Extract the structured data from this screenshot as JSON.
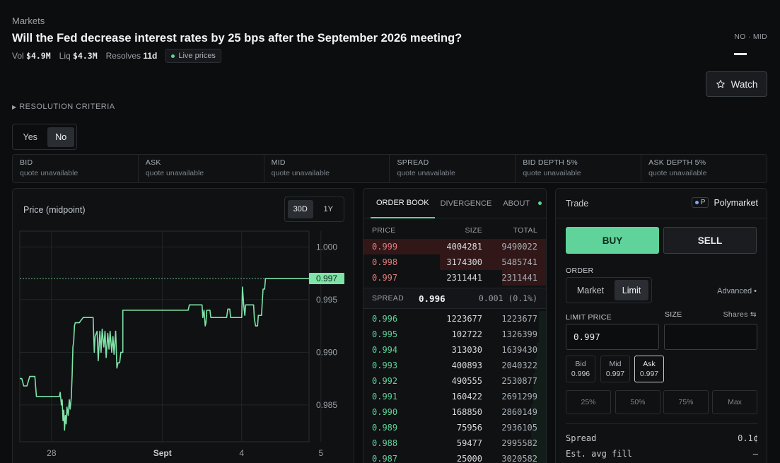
{
  "breadcrumb": "Markets",
  "title": "Will the Fed decrease interest rates by 25 bps after the September 2026 meeting?",
  "meta": {
    "vol_label": "Vol",
    "vol_value": "$4.9M",
    "liq_label": "Liq",
    "liq_value": "$4.3M",
    "resolves_label": "Resolves",
    "resolves_value": "11d",
    "live_label": "Live prices"
  },
  "outcome_indicator": "NO · MID",
  "watch_label": "Watch",
  "resolution_label": "RESOLUTION CRITERIA",
  "outcome_toggle": {
    "yes": "Yes",
    "no": "No",
    "selected": "No"
  },
  "stats": [
    {
      "label": "BID",
      "value": "quote unavailable"
    },
    {
      "label": "ASK",
      "value": "quote unavailable"
    },
    {
      "label": "MID",
      "value": "quote unavailable"
    },
    {
      "label": "SPREAD",
      "value": "quote unavailable"
    },
    {
      "label": "BID DEPTH 5%",
      "value": "quote unavailable"
    },
    {
      "label": "ASK DEPTH 5%",
      "value": "quote unavailable"
    }
  ],
  "chart": {
    "title": "Price (midpoint)",
    "range_30d": "30D",
    "range_1y": "1Y",
    "current_label": "0.997"
  },
  "chart_data": {
    "type": "line",
    "title": "Price (midpoint)",
    "ylim": [
      0.9815,
      1.0015
    ],
    "yticks": [
      1.0,
      0.995,
      0.99,
      0.985
    ],
    "ytick_labels": [
      "1.000",
      "0.995",
      "0.990",
      "0.985"
    ],
    "xticks": [
      {
        "label": "28",
        "x": -1.8
      },
      {
        "label": "Sept",
        "x": 1.0
      },
      {
        "label": "4",
        "x": 3.0
      },
      {
        "label": "5",
        "x": 5.0
      }
    ],
    "xlim": [
      -2.6,
      4.7
    ],
    "current_value": 0.997,
    "series": [
      {
        "color": "#7fe3a8",
        "points": [
          [
            -2.6,
            0.9875
          ],
          [
            -2.55,
            0.9875
          ],
          [
            -2.5,
            0.9868
          ],
          [
            -2.42,
            0.9868
          ],
          [
            -2.35,
            0.9877
          ],
          [
            -2.22,
            0.9877
          ],
          [
            -2.18,
            0.9858
          ],
          [
            -1.6,
            0.9858
          ],
          [
            -1.58,
            0.9862
          ],
          [
            -1.55,
            0.985
          ],
          [
            -1.53,
            0.9855
          ],
          [
            -1.51,
            0.9835
          ],
          [
            -1.49,
            0.9845
          ],
          [
            -1.47,
            0.9826
          ],
          [
            -1.45,
            0.984
          ],
          [
            -1.43,
            0.9832
          ],
          [
            -1.41,
            0.9848
          ],
          [
            -1.38,
            0.984
          ],
          [
            -1.35,
            0.9855
          ],
          [
            -1.33,
            0.9846
          ],
          [
            -1.3,
            0.9857
          ],
          [
            -1.28,
            0.9878
          ],
          [
            -1.26,
            0.9905
          ],
          [
            -1.24,
            0.991
          ],
          [
            -1.22,
            0.9925
          ],
          [
            -1.2,
            0.9928
          ],
          [
            -1.1,
            0.9928
          ],
          [
            -1.0,
            0.9933
          ],
          [
            -0.75,
            0.9933
          ],
          [
            -0.72,
            0.99
          ],
          [
            -0.7,
            0.9915
          ],
          [
            -0.65,
            0.992
          ],
          [
            -0.62,
            0.9892
          ],
          [
            -0.58,
            0.992
          ],
          [
            -0.55,
            0.99
          ],
          [
            -0.52,
            0.9922
          ],
          [
            -0.48,
            0.9905
          ],
          [
            -0.45,
            0.992
          ],
          [
            -0.42,
            0.9895
          ],
          [
            -0.38,
            0.9918
          ],
          [
            -0.35,
            0.9903
          ],
          [
            -0.32,
            0.992
          ],
          [
            -0.28,
            0.99
          ],
          [
            -0.25,
            0.9915
          ],
          [
            -0.22,
            0.9898
          ],
          [
            -0.18,
            0.992
          ],
          [
            -0.15,
            0.9885
          ],
          [
            -0.12,
            0.989
          ],
          [
            -0.08,
            0.989
          ],
          [
            -0.05,
            0.99
          ],
          [
            0.0,
            0.99
          ],
          [
            0.0,
            0.994
          ],
          [
            1.65,
            0.994
          ],
          [
            1.68,
            0.9945
          ],
          [
            2.0,
            0.9945
          ],
          [
            2.02,
            0.9933
          ],
          [
            2.05,
            0.994
          ],
          [
            2.08,
            0.9925
          ],
          [
            2.1,
            0.9928
          ],
          [
            2.12,
            0.994
          ],
          [
            2.2,
            0.994
          ],
          [
            2.22,
            0.9933
          ],
          [
            2.62,
            0.9933
          ],
          [
            2.65,
            0.9941
          ],
          [
            2.7,
            0.9941
          ],
          [
            2.72,
            0.9933
          ],
          [
            3.0,
            0.9933
          ],
          [
            3.02,
            0.9962
          ],
          [
            3.05,
            0.9945
          ],
          [
            3.08,
            0.9935
          ],
          [
            3.1,
            0.9945
          ],
          [
            3.3,
            0.9945
          ],
          [
            3.32,
            0.9932
          ],
          [
            3.35,
            0.9925
          ],
          [
            3.4,
            0.9925
          ],
          [
            3.42,
            0.9935
          ],
          [
            3.5,
            0.9935
          ],
          [
            3.52,
            0.9948
          ],
          [
            3.54,
            0.996
          ],
          [
            3.58,
            0.996
          ],
          [
            3.6,
            0.997
          ],
          [
            4.7,
            0.997
          ]
        ]
      }
    ]
  },
  "orderbook": {
    "tabs": [
      "ORDER BOOK",
      "DIVERGENCE",
      "ABOUT"
    ],
    "headers": {
      "price": "PRICE",
      "size": "SIZE",
      "total": "TOTAL"
    },
    "asks": [
      {
        "price": "0.999",
        "size": "4004281",
        "total": "9490022",
        "depth": 1.0
      },
      {
        "price": "0.998",
        "size": "3174300",
        "total": "5485741",
        "depth": 0.58
      },
      {
        "price": "0.997",
        "size": "2311441",
        "total": "2311441",
        "depth": 0.24
      }
    ],
    "spread": {
      "label": "SPREAD",
      "mid": "0.996",
      "value": "0.001 (0.1%)"
    },
    "bids": [
      {
        "price": "0.996",
        "size": "1223677",
        "total": "1223677",
        "depth": 0.04
      },
      {
        "price": "0.995",
        "size": "102722",
        "total": "1326399",
        "depth": 0.04
      },
      {
        "price": "0.994",
        "size": "313030",
        "total": "1639430",
        "depth": 0.05
      },
      {
        "price": "0.993",
        "size": "400893",
        "total": "2040322",
        "depth": 0.06
      },
      {
        "price": "0.992",
        "size": "490555",
        "total": "2530877",
        "depth": 0.07
      },
      {
        "price": "0.991",
        "size": "160422",
        "total": "2691299",
        "depth": 0.07
      },
      {
        "price": "0.990",
        "size": "168850",
        "total": "2860149",
        "depth": 0.08
      },
      {
        "price": "0.989",
        "size": "75956",
        "total": "2936105",
        "depth": 0.08
      },
      {
        "price": "0.988",
        "size": "59477",
        "total": "2995582",
        "depth": 0.08
      },
      {
        "price": "0.987",
        "size": "25000",
        "total": "3020582",
        "depth": 0.08
      }
    ]
  },
  "trade": {
    "title": "Trade",
    "venue_badge": "P",
    "venue": "Polymarket",
    "buy": "BUY",
    "sell": "SELL",
    "order_label": "ORDER",
    "order_market": "Market",
    "order_limit": "Limit",
    "advanced": "Advanced •",
    "limit_price_label": "LIMIT PRICE",
    "limit_price_value": "0.997",
    "size_label": "SIZE",
    "shares_label": "Shares ⇆",
    "size_value": "",
    "quick": [
      {
        "label": "Bid",
        "value": "0.996"
      },
      {
        "label": "Mid",
        "value": "0.997"
      },
      {
        "label": "Ask",
        "value": "0.997"
      }
    ],
    "percents": [
      "25%",
      "50%",
      "75%",
      "Max"
    ],
    "spread_label": "Spread",
    "spread_value": "0.1¢",
    "avg_fill_label": "Est. avg fill",
    "avg_fill_value": "–"
  }
}
